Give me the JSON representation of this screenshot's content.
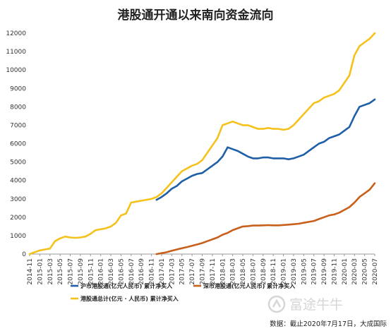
{
  "chart_data": {
    "type": "line",
    "title": "港股通开通以来南向资金流向",
    "xlabel": "",
    "ylabel": "",
    "ylim": [
      0,
      12000
    ],
    "yticks": [
      0,
      1000,
      2000,
      3000,
      4000,
      5000,
      6000,
      7000,
      8000,
      9000,
      10000,
      11000,
      12000
    ],
    "xticks": [
      "2014-11",
      "2015-01",
      "2015-03",
      "2015-05",
      "2015-07",
      "2015-09",
      "2015-11",
      "2016-01",
      "2016-03",
      "2016-05",
      "2016-07",
      "2016-09",
      "2016-11",
      "2017-01",
      "2017-03",
      "2017-05",
      "2017-07",
      "2017-09",
      "2017-11",
      "2018-01",
      "2018-03",
      "2018-05",
      "2018-07",
      "2018-09",
      "2018-11",
      "2019-01",
      "2019-03",
      "2019-05",
      "2019-07",
      "2019-09",
      "2019-11",
      "2020-01",
      "2020-03",
      "2020-05",
      "2020-07"
    ],
    "grid": false,
    "legend_position": "bottom",
    "series": [
      {
        "name": "沪市港股通(亿元人民币) 累计净买入",
        "color": "#1f5fa6",
        "x": [
          "2016-12",
          "2017-01",
          "2017-02",
          "2017-03",
          "2017-04",
          "2017-05",
          "2017-06",
          "2017-07",
          "2017-08",
          "2017-09",
          "2017-10",
          "2017-11",
          "2017-12",
          "2018-01",
          "2018-02",
          "2018-03",
          "2018-04",
          "2018-05",
          "2018-06",
          "2018-07",
          "2018-08",
          "2018-09",
          "2018-10",
          "2018-11",
          "2018-12",
          "2019-01",
          "2019-02",
          "2019-03",
          "2019-04",
          "2019-05",
          "2019-06",
          "2019-07",
          "2019-08",
          "2019-09",
          "2019-10",
          "2019-11",
          "2019-12",
          "2020-01",
          "2020-02",
          "2020-03",
          "2020-04",
          "2020-05",
          "2020-06",
          "2020-07"
        ],
        "values": [
          2950,
          3100,
          3300,
          3550,
          3700,
          3950,
          4100,
          4250,
          4350,
          4400,
          4600,
          4800,
          5000,
          5300,
          5800,
          5700,
          5600,
          5450,
          5300,
          5200,
          5200,
          5250,
          5250,
          5200,
          5200,
          5200,
          5150,
          5200,
          5300,
          5400,
          5600,
          5800,
          6000,
          6100,
          6300,
          6400,
          6500,
          6700,
          6900,
          7500,
          8000,
          8100,
          8200,
          8400
        ]
      },
      {
        "name": "深市港股通(亿元人民币) 累计净买入",
        "color": "#c8601c",
        "x": [
          "2016-12",
          "2017-01",
          "2017-02",
          "2017-03",
          "2017-04",
          "2017-05",
          "2017-06",
          "2017-07",
          "2017-08",
          "2017-09",
          "2017-10",
          "2017-11",
          "2017-12",
          "2018-01",
          "2018-02",
          "2018-03",
          "2018-04",
          "2018-05",
          "2018-06",
          "2018-07",
          "2018-08",
          "2018-09",
          "2018-10",
          "2018-11",
          "2018-12",
          "2019-01",
          "2019-02",
          "2019-03",
          "2019-04",
          "2019-05",
          "2019-06",
          "2019-07",
          "2019-08",
          "2019-09",
          "2019-10",
          "2019-11",
          "2019-12",
          "2020-01",
          "2020-02",
          "2020-03",
          "2020-04",
          "2020-05",
          "2020-06",
          "2020-07"
        ],
        "values": [
          0,
          50,
          100,
          180,
          250,
          320,
          380,
          450,
          520,
          600,
          700,
          800,
          900,
          1050,
          1150,
          1300,
          1400,
          1500,
          1520,
          1550,
          1550,
          1560,
          1570,
          1560,
          1560,
          1580,
          1600,
          1620,
          1650,
          1700,
          1750,
          1800,
          1900,
          2000,
          2100,
          2150,
          2250,
          2400,
          2550,
          2800,
          3100,
          3300,
          3500,
          3850
        ]
      },
      {
        "name": "港股通总计(亿元 · 人民币) 累计净买入",
        "color": "#f5c21b",
        "x": [
          "2014-11",
          "2014-12",
          "2015-01",
          "2015-02",
          "2015-03",
          "2015-04",
          "2015-05",
          "2015-06",
          "2015-07",
          "2015-08",
          "2015-09",
          "2015-10",
          "2015-11",
          "2015-12",
          "2016-01",
          "2016-02",
          "2016-03",
          "2016-04",
          "2016-05",
          "2016-06",
          "2016-07",
          "2016-08",
          "2016-09",
          "2016-10",
          "2016-11",
          "2016-12",
          "2017-01",
          "2017-02",
          "2017-03",
          "2017-04",
          "2017-05",
          "2017-06",
          "2017-07",
          "2017-08",
          "2017-09",
          "2017-10",
          "2017-11",
          "2017-12",
          "2018-01",
          "2018-02",
          "2018-03",
          "2018-04",
          "2018-05",
          "2018-06",
          "2018-07",
          "2018-08",
          "2018-09",
          "2018-10",
          "2018-11",
          "2018-12",
          "2019-01",
          "2019-02",
          "2019-03",
          "2019-04",
          "2019-05",
          "2019-06",
          "2019-07",
          "2019-08",
          "2019-09",
          "2019-10",
          "2019-11",
          "2019-12",
          "2020-01",
          "2020-02",
          "2020-03",
          "2020-04",
          "2020-05",
          "2020-06",
          "2020-07"
        ],
        "values": [
          0,
          100,
          200,
          250,
          300,
          700,
          850,
          950,
          900,
          880,
          900,
          950,
          1100,
          1300,
          1350,
          1400,
          1500,
          1700,
          2100,
          2200,
          2800,
          2850,
          2900,
          2950,
          3000,
          3100,
          3300,
          3600,
          3900,
          4200,
          4500,
          4650,
          4800,
          4900,
          5100,
          5500,
          5900,
          6300,
          7000,
          7100,
          7200,
          7100,
          7000,
          7000,
          6900,
          6800,
          6800,
          6850,
          6800,
          6800,
          6750,
          6800,
          7000,
          7300,
          7600,
          7900,
          8200,
          8300,
          8500,
          8600,
          8700,
          8900,
          9300,
          9700,
          10800,
          11300,
          11500,
          11700,
          12000
        ]
      }
    ]
  },
  "watermark": "富途牛牛",
  "source": "数据：截止2020年7月17日，大成国际"
}
